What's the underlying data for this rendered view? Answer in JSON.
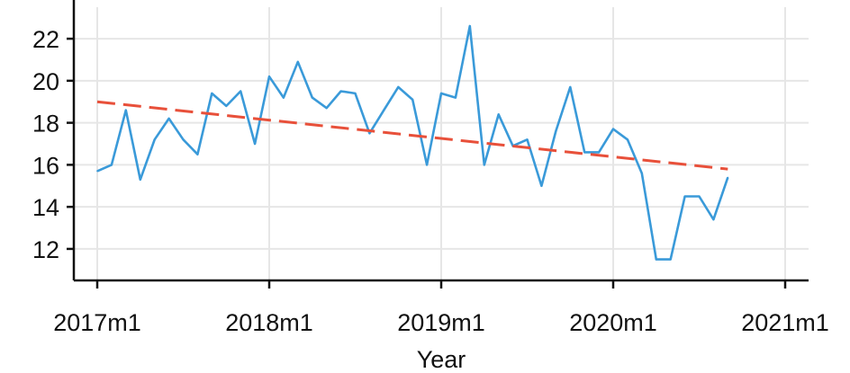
{
  "chart_data": {
    "type": "line",
    "title": "",
    "xlabel": "Year",
    "ylabel": "",
    "x_ticks": [
      "2017m1",
      "2018m1",
      "2019m1",
      "2020m1",
      "2021m1"
    ],
    "y_ticks": [
      12,
      14,
      16,
      18,
      20,
      22
    ],
    "xlim": [
      "2017m1",
      "2021m1"
    ],
    "ylim": [
      10.5,
      23.5
    ],
    "grid": true,
    "legend": "none",
    "series": [
      {
        "color": "#3a9ad9",
        "style": "solid",
        "x": [
          "2017m1",
          "2017m2",
          "2017m3",
          "2017m4",
          "2017m5",
          "2017m6",
          "2017m7",
          "2017m8",
          "2017m9",
          "2017m10",
          "2017m11",
          "2017m12",
          "2018m1",
          "2018m2",
          "2018m3",
          "2018m4",
          "2018m5",
          "2018m6",
          "2018m7",
          "2018m8",
          "2018m9",
          "2018m10",
          "2018m11",
          "2018m12",
          "2019m1",
          "2019m2",
          "2019m3",
          "2019m4",
          "2019m5",
          "2019m6",
          "2019m7",
          "2019m8",
          "2019m9",
          "2019m10",
          "2019m11",
          "2019m12",
          "2020m1",
          "2020m2",
          "2020m3",
          "2020m4",
          "2020m5",
          "2020m6",
          "2020m7",
          "2020m8",
          "2020m9"
        ],
        "values": [
          15.7,
          16.0,
          18.6,
          15.3,
          17.2,
          18.2,
          17.2,
          16.5,
          19.4,
          18.8,
          19.5,
          17.0,
          20.2,
          19.2,
          20.9,
          19.2,
          18.7,
          19.5,
          19.4,
          17.5,
          18.6,
          19.7,
          19.1,
          16.0,
          19.4,
          19.2,
          22.6,
          16.0,
          18.4,
          16.9,
          17.2,
          15.0,
          17.6,
          19.7,
          16.6,
          16.6,
          17.7,
          17.2,
          15.6,
          11.5,
          11.5,
          14.5,
          14.5,
          13.4,
          15.4
        ]
      },
      {
        "color": "#e8503a",
        "style": "dashed",
        "x": [
          "2017m1",
          "2020m9"
        ],
        "values": [
          19.0,
          15.8
        ]
      }
    ]
  }
}
